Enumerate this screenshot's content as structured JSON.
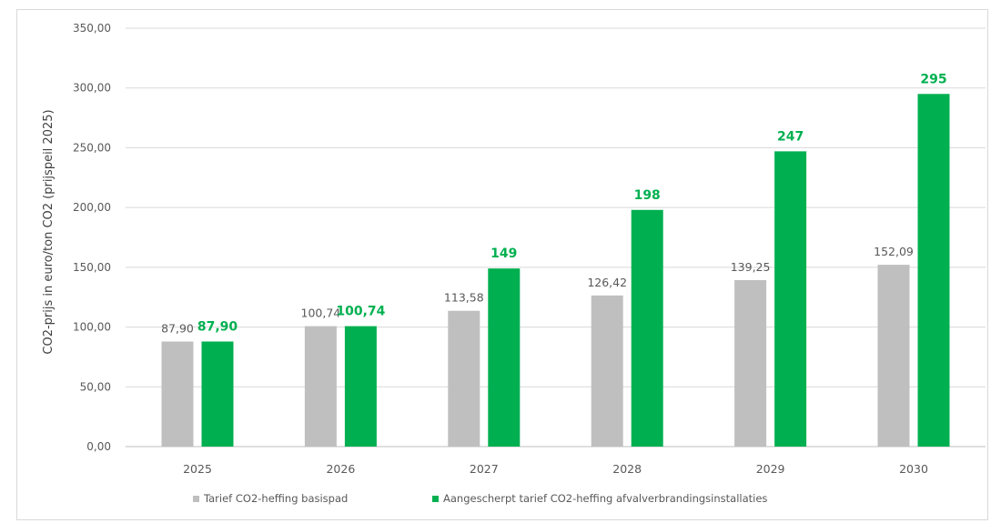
{
  "chart_data": {
    "type": "bar",
    "categories": [
      "2025",
      "2026",
      "2027",
      "2028",
      "2029",
      "2030"
    ],
    "series": [
      {
        "name": "Tarief CO2-heffing basispad",
        "values": [
          87.9,
          100.74,
          113.58,
          126.42,
          139.25,
          152.09
        ],
        "labels": [
          "87,90",
          "100,74",
          "113,58",
          "126,42",
          "139,25",
          "152,09"
        ],
        "color": "#bfbfbf",
        "label_color": "#595959"
      },
      {
        "name": "Aangescherpt tarief CO2-heffing afvalverbrandingsinstallaties",
        "values": [
          87.9,
          100.74,
          149,
          198,
          247,
          295
        ],
        "labels": [
          "87,90",
          "100,74",
          "149",
          "198",
          "247",
          "295"
        ],
        "color": "#00b050",
        "label_color": "#00b050"
      }
    ],
    "ylabel": "CO2-prijs in euro/ton CO2 (prijspeil 2025)",
    "xlabel": "",
    "ylim": [
      0,
      350
    ],
    "yticks": [
      0,
      50,
      100,
      150,
      200,
      250,
      300,
      350
    ],
    "ytick_labels": [
      "0,00",
      "50,00",
      "100,00",
      "150,00",
      "200,00",
      "250,00",
      "300,00",
      "350,00"
    ],
    "grid": true,
    "legend_position": "bottom"
  }
}
